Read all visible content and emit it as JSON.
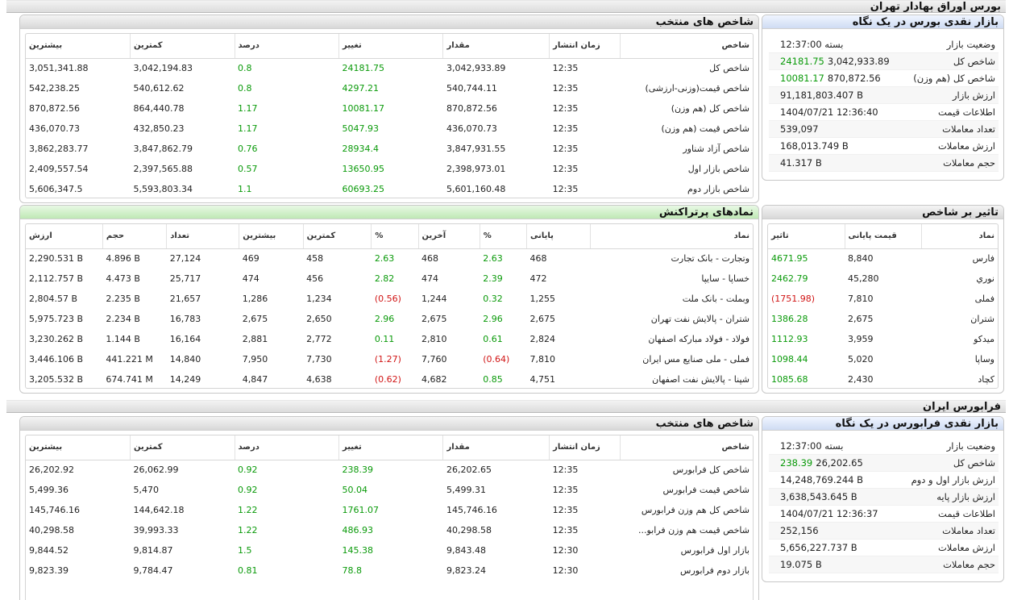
{
  "tehran": {
    "title": "بورس اوراق بهادار تهران",
    "selected_indices": {
      "title": "شاخص های منتخب",
      "columns": [
        "شاخص",
        "زمان انتشار",
        "مقدار",
        "تغییر",
        "درصد",
        "کمترین",
        "بیشترین"
      ],
      "rows": [
        {
          "name": "شاخص کل",
          "time": "12:35",
          "value": "3,042,933.89",
          "change": "24181.75",
          "percent": "0.8",
          "low": "3,042,194.83",
          "high": "3,051,341.88"
        },
        {
          "name": "شاخص قیمت(وزنی-ارزشی)",
          "time": "12:35",
          "value": "540,744.11",
          "change": "4297.21",
          "percent": "0.8",
          "low": "540,612.62",
          "high": "542,238.25"
        },
        {
          "name": "شاخص کل (هم وزن)",
          "time": "12:35",
          "value": "870,872.56",
          "change": "10081.17",
          "percent": "1.17",
          "low": "864,440.78",
          "high": "870,872.56"
        },
        {
          "name": "شاخص قیمت (هم وزن)",
          "time": "12:35",
          "value": "436,070.73",
          "change": "5047.93",
          "percent": "1.17",
          "low": "432,850.23",
          "high": "436,070.73"
        },
        {
          "name": "شاخص آزاد شناور",
          "time": "12:35",
          "value": "3,847,931.55",
          "change": "28934.4",
          "percent": "0.76",
          "low": "3,847,862.79",
          "high": "3,862,283.77"
        },
        {
          "name": "شاخص بازار اول",
          "time": "12:35",
          "value": "2,398,973.01",
          "change": "13650.95",
          "percent": "0.57",
          "low": "2,397,565.88",
          "high": "2,409,557.54"
        },
        {
          "name": "شاخص بازار دوم",
          "time": "12:35",
          "value": "5,601,160.48",
          "change": "60693.25",
          "percent": "1.1",
          "low": "5,593,803.34",
          "high": "5,606,347.5"
        }
      ]
    },
    "snapshot": {
      "title": "بازار نقدی بورس در یک نگاه",
      "rows": [
        {
          "label": "وضعیت بازار",
          "value": "بسته 12:37:00",
          "change": ""
        },
        {
          "label": "شاخص کل",
          "value": "3,042,933.89",
          "change": "24181.75"
        },
        {
          "label": "شاخص کل (هم وزن)",
          "value": "870,872.56",
          "change": "10081.17"
        },
        {
          "label": "ارزش بازار",
          "value": "91,181,803.407 B",
          "change": ""
        },
        {
          "label": "اطلاعات قیمت",
          "value": "1404/07/21 12:36:40",
          "change": ""
        },
        {
          "label": "تعداد معاملات",
          "value": "539,097",
          "change": ""
        },
        {
          "label": "ارزش معاملات",
          "value": "168,013.749 B",
          "change": ""
        },
        {
          "label": "حجم معاملات",
          "value": "41.317 B",
          "change": ""
        }
      ]
    },
    "top_symbols": {
      "title": "نمادهای پرتراکنش",
      "columns": [
        "نماد",
        "پایانی",
        "%",
        "آخرین",
        "%",
        "کمترین",
        "بیشترین",
        "تعداد",
        "حجم",
        "ارزش"
      ],
      "rows": [
        {
          "name": "وتجارت - بانک تجارت",
          "close": "468",
          "close_pct": "2.63",
          "last": "468",
          "last_pct": "2.63",
          "low": "458",
          "high": "469",
          "count": "27,124",
          "volume": "4.896 B",
          "value": "2,290.531 B",
          "close_neg": false,
          "last_neg": false
        },
        {
          "name": "خساپا - سایپا",
          "close": "472",
          "close_pct": "2.39",
          "last": "474",
          "last_pct": "2.82",
          "low": "456",
          "high": "474",
          "count": "25,717",
          "volume": "4.473 B",
          "value": "2,112.757 B",
          "close_neg": false,
          "last_neg": false
        },
        {
          "name": "وبملت - بانک ملت",
          "close": "1,255",
          "close_pct": "0.32",
          "last": "1,244",
          "last_pct": "(0.56)",
          "low": "1,234",
          "high": "1,286",
          "count": "21,657",
          "volume": "2.235 B",
          "value": "2,804.57 B",
          "close_neg": false,
          "last_neg": true
        },
        {
          "name": "شتران - پالایش نفت تهران",
          "close": "2,675",
          "close_pct": "2.96",
          "last": "2,675",
          "last_pct": "2.96",
          "low": "2,650",
          "high": "2,675",
          "count": "16,783",
          "volume": "2.234 B",
          "value": "5,975.723 B",
          "close_neg": false,
          "last_neg": false
        },
        {
          "name": "فولاد - فولاد مباركه اصفهان",
          "close": "2,824",
          "close_pct": "0.61",
          "last": "2,810",
          "last_pct": "0.11",
          "low": "2,772",
          "high": "2,881",
          "count": "16,164",
          "volume": "1.144 B",
          "value": "3,230.262 B",
          "close_neg": false,
          "last_neg": false
        },
        {
          "name": "فملی - ملی صنایع مس ایران",
          "close": "7,810",
          "close_pct": "(0.64)",
          "last": "7,760",
          "last_pct": "(1.27)",
          "low": "7,730",
          "high": "7,950",
          "count": "14,840",
          "volume": "441.221 M",
          "value": "3,446.106 B",
          "close_neg": true,
          "last_neg": true
        },
        {
          "name": "شپنا - پالایش نفت اصفهان",
          "close": "4,751",
          "close_pct": "0.85",
          "last": "4,682",
          "last_pct": "(0.62)",
          "low": "4,638",
          "high": "4,847",
          "count": "14,249",
          "volume": "674.741 M",
          "value": "3,205.532 B",
          "close_neg": false,
          "last_neg": true
        }
      ]
    },
    "impact": {
      "title": "تاثیر بر شاخص",
      "columns": [
        "نماد",
        "قیمت پایانی",
        "تاثیر"
      ],
      "rows": [
        {
          "name": "فارس",
          "price": "8,840",
          "impact": "4671.95",
          "neg": false
        },
        {
          "name": "نوري",
          "price": "45,280",
          "impact": "2462.79",
          "neg": false
        },
        {
          "name": "فملی",
          "price": "7,810",
          "impact": "(1751.98)",
          "neg": true
        },
        {
          "name": "شتران",
          "price": "2,675",
          "impact": "1386.28",
          "neg": false
        },
        {
          "name": "ميدكو",
          "price": "3,959",
          "impact": "1112.93",
          "neg": false
        },
        {
          "name": "وساپا",
          "price": "5,020",
          "impact": "1098.44",
          "neg": false
        },
        {
          "name": "كچاد",
          "price": "2,430",
          "impact": "1085.68",
          "neg": false
        }
      ]
    }
  },
  "farabourse": {
    "title": "فرابورس ایران",
    "selected_indices": {
      "title": "شاخص های منتخب",
      "columns": [
        "شاخص",
        "زمان انتشار",
        "مقدار",
        "تغییر",
        "درصد",
        "کمترین",
        "بیشترین"
      ],
      "rows": [
        {
          "name": "شاخص کل فرابورس",
          "time": "12:35",
          "value": "26,202.65",
          "change": "238.39",
          "percent": "0.92",
          "low": "26,062.99",
          "high": "26,202.92"
        },
        {
          "name": "شاخص قیمت فرابورس",
          "time": "12:35",
          "value": "5,499.31",
          "change": "50.04",
          "percent": "0.92",
          "low": "5,470",
          "high": "5,499.36"
        },
        {
          "name": "شاخص کل هم وزن فرابورس",
          "time": "12:35",
          "value": "145,746.16",
          "change": "1761.07",
          "percent": "1.22",
          "low": "144,642.18",
          "high": "145,746.16"
        },
        {
          "name": "شاخص قیمت هم وزن فرابو...",
          "time": "12:35",
          "value": "40,298.58",
          "change": "486.93",
          "percent": "1.22",
          "low": "39,993.33",
          "high": "40,298.58"
        },
        {
          "name": "بازار اول فرابورس",
          "time": "12:30",
          "value": "9,843.48",
          "change": "145.38",
          "percent": "1.5",
          "low": "9,814.87",
          "high": "9,844.52"
        },
        {
          "name": "بازار دوم فرابورس",
          "time": "12:30",
          "value": "9,823.24",
          "change": "78.8",
          "percent": "0.81",
          "low": "9,784.47",
          "high": "9,823.39"
        }
      ]
    },
    "snapshot": {
      "title": "بازار نقدی فرابورس در یک نگاه",
      "rows": [
        {
          "label": "وضعیت بازار",
          "value": "بسته 12:37:00",
          "change": ""
        },
        {
          "label": "شاخص کل",
          "value": "26,202.65",
          "change": "238.39"
        },
        {
          "label": "ارزش بازار اول و دوم",
          "value": "14,248,769.244 B",
          "change": ""
        },
        {
          "label": "ارزش بازار پایه",
          "value": "3,638,543.645 B",
          "change": ""
        },
        {
          "label": "اطلاعات قیمت",
          "value": "1404/07/21 12:36:37",
          "change": ""
        },
        {
          "label": "تعداد معاملات",
          "value": "252,156",
          "change": ""
        },
        {
          "label": "ارزش معاملات",
          "value": "5,656,227.737 B",
          "change": ""
        },
        {
          "label": "حجم معاملات",
          "value": "19.075 B",
          "change": ""
        }
      ]
    }
  },
  "colors": {
    "positive": "#0a9a0a",
    "negative": "#d11515"
  }
}
